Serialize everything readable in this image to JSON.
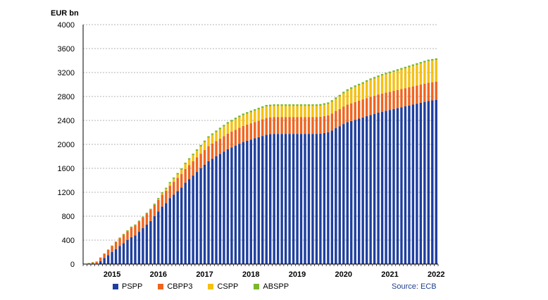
{
  "chart_data": {
    "type": "bar",
    "stacked": true,
    "y_unit_label": "EUR bn",
    "ylim": [
      0,
      4000
    ],
    "yticks": [
      0,
      400,
      800,
      1200,
      1600,
      2000,
      2400,
      2800,
      3200,
      3600,
      4000
    ],
    "grid": true,
    "legend_position": "bottom",
    "x_year_labels": [
      "2015",
      "2016",
      "2017",
      "2018",
      "2019",
      "2020",
      "2021",
      "2022"
    ],
    "categories": [
      "2014-11",
      "2014-12",
      "2015-01",
      "2015-02",
      "2015-03",
      "2015-04",
      "2015-05",
      "2015-06",
      "2015-07",
      "2015-08",
      "2015-09",
      "2015-10",
      "2015-11",
      "2015-12",
      "2016-01",
      "2016-02",
      "2016-03",
      "2016-04",
      "2016-05",
      "2016-06",
      "2016-07",
      "2016-08",
      "2016-09",
      "2016-10",
      "2016-11",
      "2016-12",
      "2017-01",
      "2017-02",
      "2017-03",
      "2017-04",
      "2017-05",
      "2017-06",
      "2017-07",
      "2017-08",
      "2017-09",
      "2017-10",
      "2017-11",
      "2017-12",
      "2018-01",
      "2018-02",
      "2018-03",
      "2018-04",
      "2018-05",
      "2018-06",
      "2018-07",
      "2018-08",
      "2018-09",
      "2018-10",
      "2018-11",
      "2018-12",
      "2019-01",
      "2019-02",
      "2019-03",
      "2019-04",
      "2019-05",
      "2019-06",
      "2019-07",
      "2019-08",
      "2019-09",
      "2019-10",
      "2019-11",
      "2019-12",
      "2020-01",
      "2020-02",
      "2020-03",
      "2020-04",
      "2020-05",
      "2020-06",
      "2020-07",
      "2020-08",
      "2020-09",
      "2020-10",
      "2020-11",
      "2020-12",
      "2021-01",
      "2021-02",
      "2021-03",
      "2021-04",
      "2021-05",
      "2021-06",
      "2021-07",
      "2021-08",
      "2021-09",
      "2021-10",
      "2021-11",
      "2021-12",
      "2022-01",
      "2022-02",
      "2022-03",
      "2022-04",
      "2022-05",
      "2022-06"
    ],
    "series": [
      {
        "name": "PSPP",
        "color": "#1f3f9e",
        "values": [
          0,
          0,
          0,
          0,
          50,
          100,
          150,
          200,
          250,
          300,
          350,
          400,
          450,
          480,
          540,
          600,
          660,
          720,
          800,
          880,
          960,
          1020,
          1100,
          1160,
          1220,
          1280,
          1360,
          1420,
          1480,
          1540,
          1600,
          1660,
          1720,
          1760,
          1800,
          1840,
          1880,
          1920,
          1950,
          1980,
          2010,
          2040,
          2060,
          2080,
          2100,
          2120,
          2140,
          2160,
          2170,
          2175,
          2175,
          2175,
          2175,
          2175,
          2175,
          2175,
          2175,
          2175,
          2175,
          2175,
          2175,
          2180,
          2190,
          2200,
          2230,
          2270,
          2300,
          2340,
          2370,
          2390,
          2410,
          2430,
          2450,
          2470,
          2490,
          2510,
          2530,
          2545,
          2560,
          2575,
          2590,
          2605,
          2620,
          2635,
          2650,
          2665,
          2680,
          2695,
          2710,
          2725,
          2735,
          2745
        ]
      },
      {
        "name": "CBPP3",
        "color": "#f0641e",
        "values": [
          2,
          15,
          30,
          40,
          55,
          70,
          85,
          100,
          115,
          130,
          140,
          150,
          160,
          165,
          170,
          175,
          180,
          185,
          190,
          195,
          200,
          205,
          210,
          215,
          220,
          225,
          230,
          235,
          240,
          242,
          245,
          248,
          250,
          252,
          254,
          256,
          258,
          260,
          262,
          264,
          266,
          268,
          270,
          272,
          274,
          276,
          278,
          280,
          282,
          282,
          282,
          282,
          282,
          282,
          282,
          282,
          282,
          282,
          282,
          282,
          282,
          282,
          282,
          284,
          286,
          288,
          290,
          292,
          294,
          296,
          298,
          300,
          302,
          304,
          304,
          304,
          304,
          304,
          304,
          304,
          304,
          304,
          304,
          304,
          304,
          304,
          304,
          304,
          304,
          304,
          304,
          304
        ]
      },
      {
        "name": "CSPP",
        "color": "#f5c013",
        "values": [
          0,
          0,
          0,
          0,
          0,
          0,
          0,
          0,
          0,
          0,
          0,
          0,
          0,
          0,
          0,
          0,
          0,
          0,
          0,
          10,
          20,
          30,
          40,
          50,
          60,
          70,
          80,
          90,
          100,
          110,
          120,
          130,
          140,
          145,
          150,
          155,
          160,
          165,
          170,
          175,
          178,
          180,
          182,
          184,
          186,
          188,
          190,
          192,
          185,
          185,
          185,
          185,
          185,
          185,
          185,
          185,
          185,
          185,
          185,
          185,
          185,
          185,
          188,
          190,
          195,
          200,
          210,
          220,
          230,
          240,
          250,
          255,
          260,
          270,
          280,
          285,
          290,
          300,
          305,
          310,
          315,
          320,
          325,
          330,
          335,
          340,
          345,
          350,
          355,
          360,
          360,
          360
        ]
      },
      {
        "name": "ABSPP",
        "color": "#7ab82c",
        "values": [
          1,
          2,
          3,
          4,
          6,
          8,
          9,
          10,
          12,
          13,
          14,
          15,
          16,
          17,
          17,
          18,
          18,
          19,
          19,
          20,
          20,
          21,
          21,
          22,
          22,
          23,
          23,
          24,
          24,
          25,
          25,
          26,
          26,
          26,
          27,
          27,
          27,
          27,
          27,
          27,
          27,
          27,
          27,
          27,
          27,
          27,
          27,
          27,
          27,
          27,
          27,
          27,
          27,
          27,
          27,
          27,
          27,
          27,
          27,
          27,
          27,
          27,
          27,
          27,
          27,
          27,
          27,
          27,
          27,
          27,
          27,
          27,
          27,
          27,
          27,
          27,
          27,
          27,
          27,
          27,
          27,
          27,
          27,
          27,
          27,
          27,
          27,
          27,
          27,
          27,
          27,
          27
        ]
      }
    ],
    "source": "Source: ECB"
  }
}
